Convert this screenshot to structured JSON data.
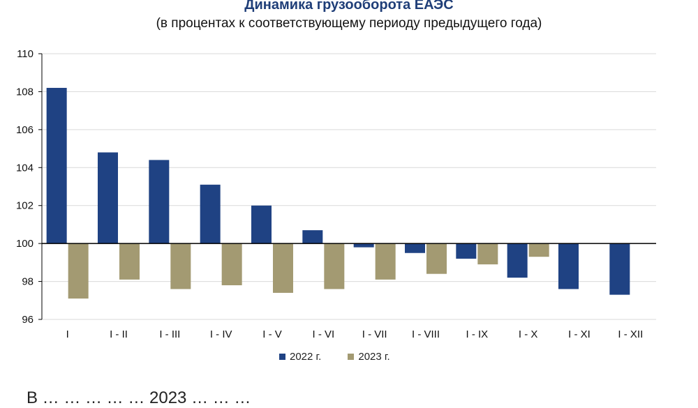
{
  "chart_data": {
    "type": "bar",
    "title": "Динамика грузооборота ЕАЭС",
    "subtitle": "(в процентах к соответствующему периоду предыдущего года)",
    "categories": [
      "I",
      "I - II",
      "I - III",
      "I - IV",
      "I - V",
      "I - VI",
      "I - VII",
      "I - VIII",
      "I - IX",
      "I - X",
      "I - XI",
      "I - XII"
    ],
    "baseline": 100,
    "ylim": [
      96,
      110
    ],
    "yticks": [
      96,
      98,
      100,
      102,
      104,
      106,
      108,
      110
    ],
    "grid": true,
    "legend_position": "bottom",
    "series": [
      {
        "name": "2022 г.",
        "color": "#1f4283",
        "values": [
          108.2,
          104.8,
          104.4,
          103.1,
          102.0,
          100.7,
          99.8,
          99.5,
          99.2,
          98.2,
          97.6,
          97.3
        ]
      },
      {
        "name": "2023 г.",
        "color": "#a39a72",
        "values": [
          97.1,
          98.1,
          97.6,
          97.8,
          97.4,
          97.6,
          98.1,
          98.4,
          98.9,
          99.3,
          null,
          null
        ]
      }
    ]
  },
  "footer": {
    "text": "В … … … … … 2023 … … …"
  }
}
